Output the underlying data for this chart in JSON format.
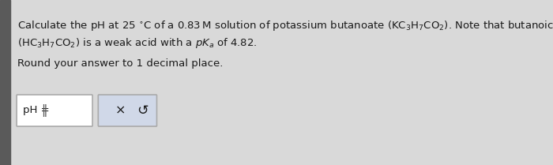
{
  "bg_color": "#d9d9d9",
  "left_margin_color": "#5a5a5a",
  "text_color": "#1a1a1a",
  "input_box_color": "#ffffff",
  "input_box_border": "#aaaaaa",
  "button_box_color": "#d0d8e8",
  "button_box_border": "#aaaaaa",
  "x_symbol": "×",
  "redo_symbol": "↺",
  "font_size_main": 9.5
}
